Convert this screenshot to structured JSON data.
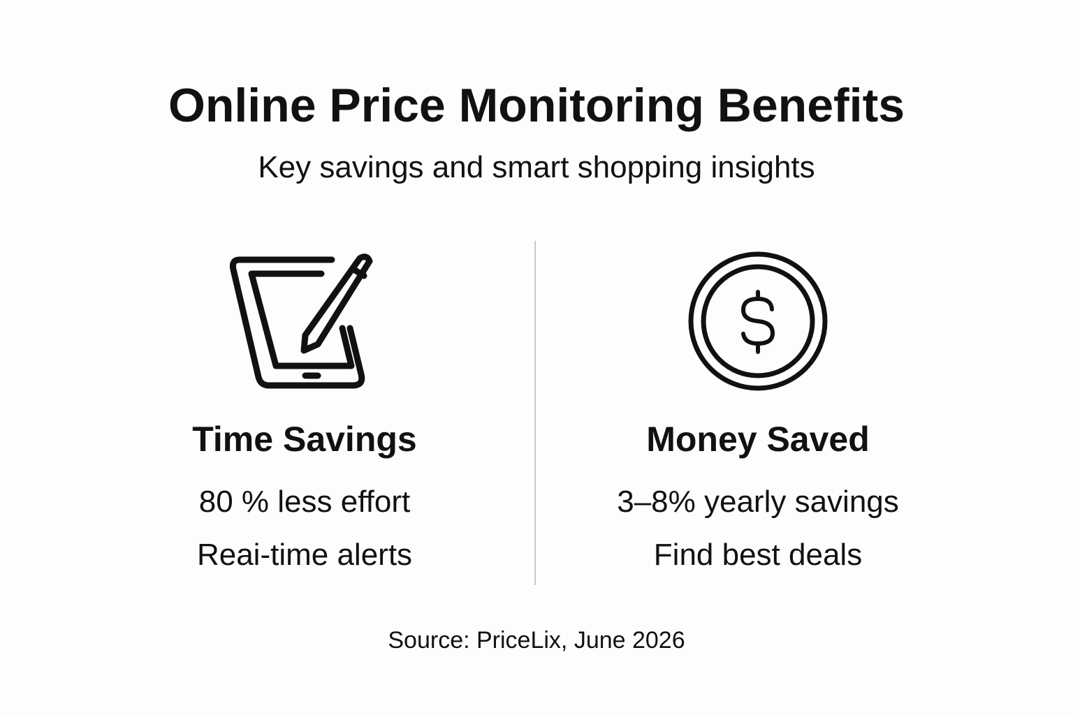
{
  "title": "Online Price Monitoring Benefits",
  "subtitle": "Key savings and smart shopping insights",
  "columns": [
    {
      "icon": "tablet-pen-icon",
      "heading": "Time Savings",
      "lines": [
        "80 % less effort",
        "Reai-time alerts"
      ]
    },
    {
      "icon": "dollar-coin-icon",
      "heading": "Money Saved",
      "lines": [
        "3–8% yearly savings",
        "Find best deals"
      ]
    }
  ],
  "source": "Source: PriceLix, June 2026",
  "colors": {
    "text": "#111111",
    "background": "#fdfdfd",
    "divider": "#c8c8c8"
  }
}
